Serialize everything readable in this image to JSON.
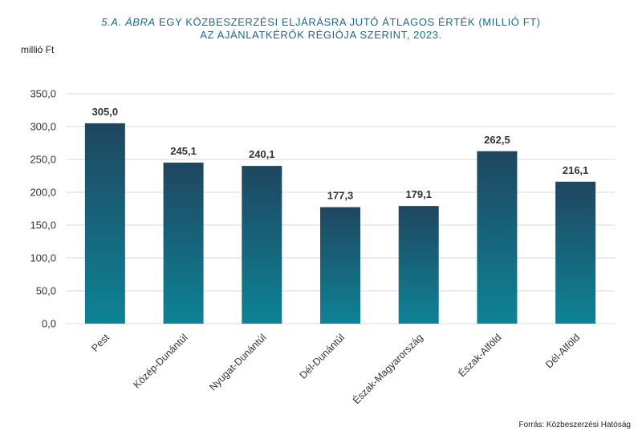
{
  "title": {
    "prefix": "5.A. ÁBRA",
    "line1_rest": " EGY KÖZBESZERZÉSI ELJÁRÁSRA JUTÓ ÁTLAGOS ÉRTÉK (MILLIÓ FT)",
    "line2": "AZ AJÁNLATKÉRŐK RÉGIÓJA SZERINT, 2023."
  },
  "unit_label": "millió Ft",
  "source": "Forrás: Közbeszerzési Hatóság",
  "colors": {
    "bar_top": "#1f4660",
    "bar_bottom": "#0e8396",
    "grid": "#d9d9d9",
    "title": "#1a6b8a"
  },
  "chart_data": {
    "type": "bar",
    "categories": [
      "Pest",
      "Közép-Dunántúl",
      "Nyugat-Dunántúl",
      "Dél-Dunántúl",
      "Észak-Magyarország",
      "Észak-Alföld",
      "Dél-Alföld"
    ],
    "values": [
      305.0,
      245.1,
      240.1,
      177.3,
      179.1,
      262.5,
      216.1
    ],
    "value_labels": [
      "305,0",
      "245,1",
      "240,1",
      "177,3",
      "179,1",
      "262,5",
      "216,1"
    ],
    "ylabel": "millió Ft",
    "ylim": [
      0,
      350
    ],
    "yticks": [
      0,
      50,
      100,
      150,
      200,
      250,
      300,
      350
    ],
    "ytick_labels": [
      "0,0",
      "50,0",
      "100,0",
      "150,0",
      "200,0",
      "250,0",
      "300,0",
      "350,0"
    ],
    "grid": true,
    "legend": "none"
  }
}
